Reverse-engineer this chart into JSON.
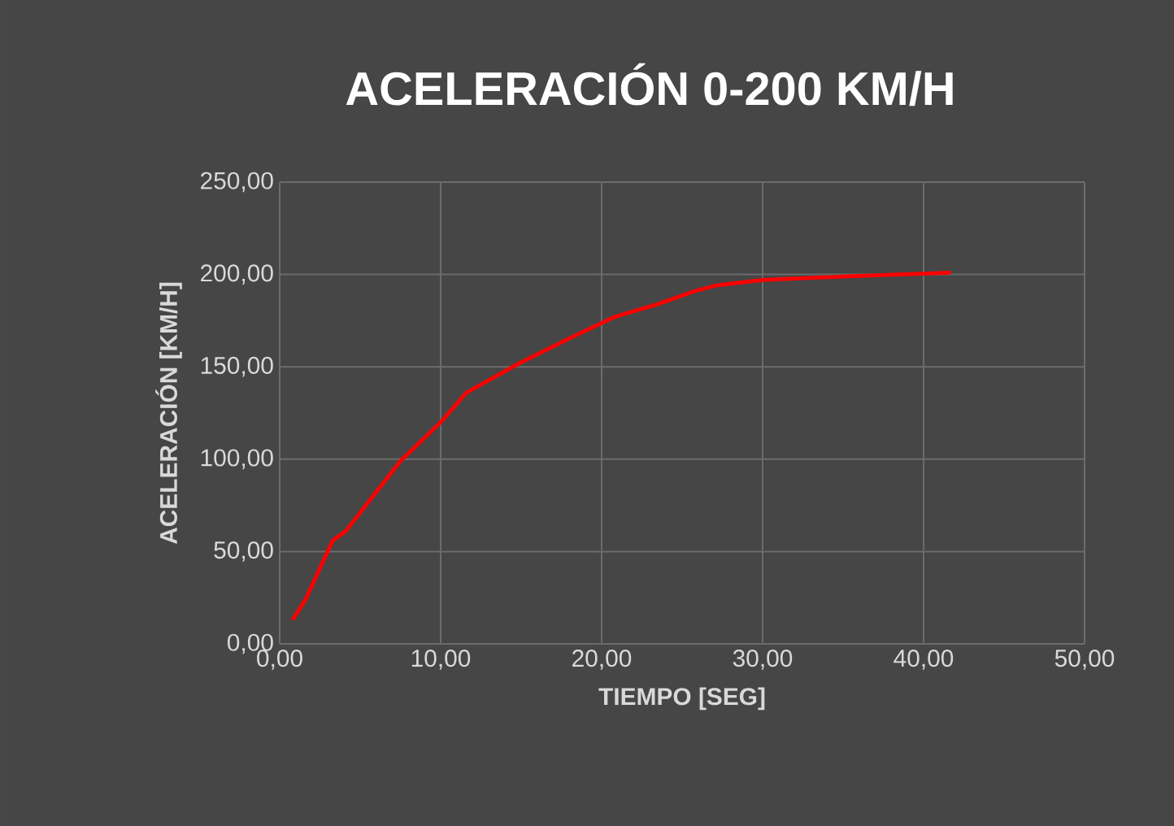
{
  "chart_data": {
    "type": "line",
    "title": "ACELERACIÓN 0-200 KM/H",
    "xlabel": "TIEMPO [SEG]",
    "ylabel": "ACELERACIÓN [KM/H]",
    "xlim": [
      0,
      50
    ],
    "ylim": [
      0,
      250
    ],
    "xticks": [
      {
        "value": 0,
        "label": "0,00"
      },
      {
        "value": 10,
        "label": "10,00"
      },
      {
        "value": 20,
        "label": "20,00"
      },
      {
        "value": 30,
        "label": "30,00"
      },
      {
        "value": 40,
        "label": "40,00"
      },
      {
        "value": 50,
        "label": "50,00"
      }
    ],
    "yticks": [
      {
        "value": 0,
        "label": "0,00"
      },
      {
        "value": 50,
        "label": "50,00"
      },
      {
        "value": 100,
        "label": "100,00"
      },
      {
        "value": 150,
        "label": "150,00"
      },
      {
        "value": 200,
        "label": "200,00"
      },
      {
        "value": 250,
        "label": "250,00"
      }
    ],
    "grid": true,
    "marker": "none",
    "line_style": "solid",
    "series": [
      {
        "color": "#ff0000",
        "x": [
          0.8,
          1.6,
          3.3,
          4.1,
          7.5,
          10.0,
          11.6,
          14.9,
          17.9,
          20.8,
          23.5,
          25.8,
          27.1,
          30.0,
          35.3,
          41.7
        ],
        "values": [
          13,
          24,
          56,
          61,
          99,
          120,
          136,
          152,
          165,
          177,
          184,
          191,
          194,
          197,
          199,
          201
        ]
      }
    ]
  }
}
